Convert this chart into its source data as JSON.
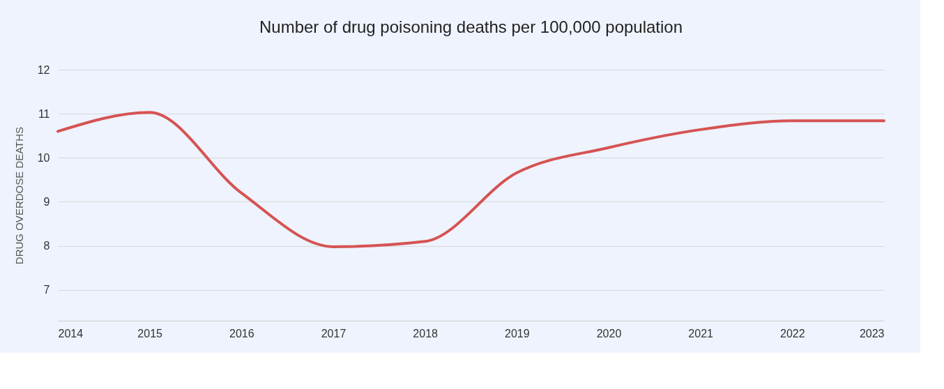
{
  "chart_data": {
    "type": "line",
    "title": "Number of drug poisoning deaths per 100,000 population",
    "ylabel": "DRUG OVERDOSE DEATHS",
    "x": [
      2014,
      2015,
      2016,
      2017,
      2018,
      2019,
      2020,
      2021,
      2022,
      2023
    ],
    "series": [
      {
        "color": "#d65353",
        "values": [
          10.6,
          11.03,
          9.2,
          7.98,
          8.1,
          9.66,
          10.23,
          10.64,
          10.84,
          10.84
        ]
      }
    ],
    "xlim": [
      2014,
      2023
    ],
    "xticks": [
      2014,
      2015,
      2016,
      2017,
      2018,
      2019,
      2020,
      2021,
      2022,
      2023
    ],
    "ylim": [
      6.3,
      12
    ],
    "yticks": [
      7,
      8,
      9,
      10,
      11,
      12
    ],
    "grid": "y",
    "legend": false,
    "marker": "none",
    "line_style": "solid"
  }
}
